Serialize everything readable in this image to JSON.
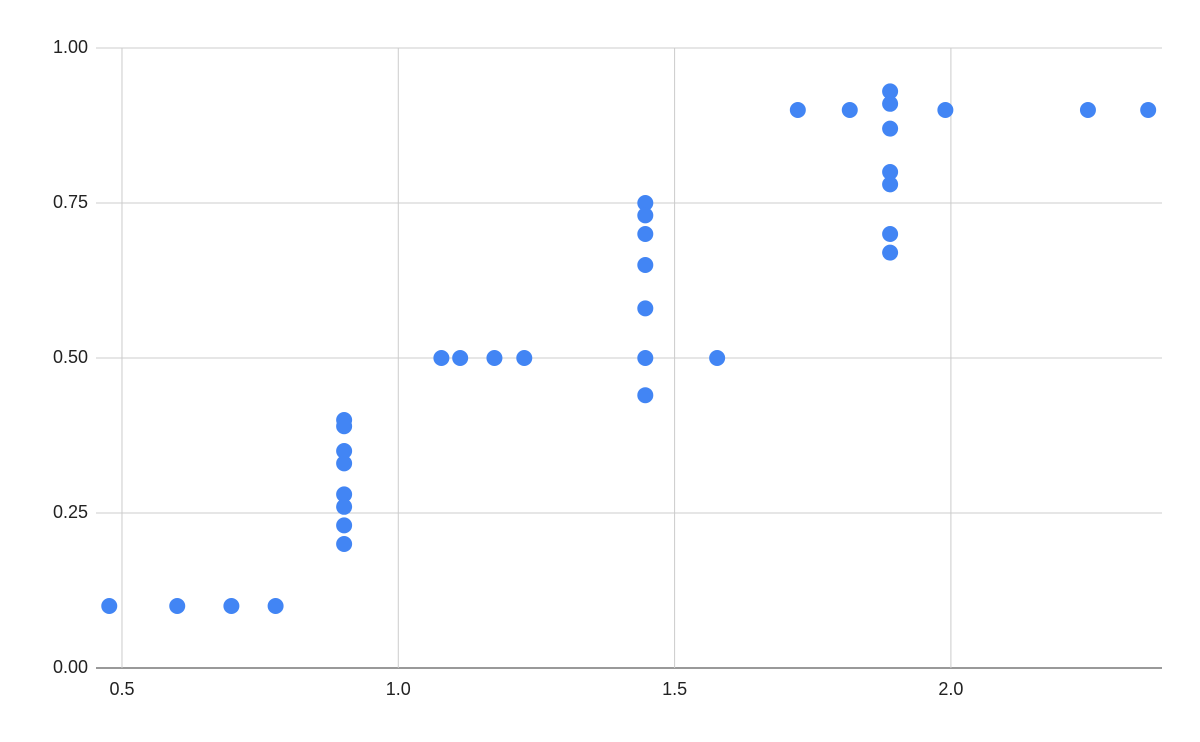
{
  "chart_data": {
    "type": "scatter",
    "x": [
      0.477,
      0.6,
      0.698,
      0.778,
      0.902,
      0.902,
      0.902,
      0.902,
      0.902,
      0.902,
      0.902,
      0.902,
      1.078,
      1.112,
      1.174,
      1.228,
      1.447,
      1.447,
      1.447,
      1.447,
      1.447,
      1.447,
      1.447,
      1.577,
      1.723,
      1.817,
      1.89,
      1.89,
      1.89,
      1.89,
      1.89,
      1.89,
      1.89,
      1.99,
      2.248,
      2.357
    ],
    "values": [
      0.1,
      0.1,
      0.1,
      0.1,
      0.4,
      0.39,
      0.35,
      0.33,
      0.28,
      0.26,
      0.23,
      0.2,
      0.5,
      0.5,
      0.5,
      0.5,
      0.75,
      0.73,
      0.7,
      0.65,
      0.58,
      0.5,
      0.44,
      0.5,
      0.9,
      0.9,
      0.93,
      0.91,
      0.87,
      0.8,
      0.78,
      0.7,
      0.67,
      0.9,
      0.9,
      0.9
    ],
    "color": "#4285f4",
    "xlim": [
      0.453,
      2.382
    ],
    "xticks": [
      0.5,
      {
        "value": 1,
        "label": "1.0"
      },
      1.5,
      {
        "value": 2,
        "label": "2.0"
      }
    ],
    "ylim": [
      0,
      1
    ],
    "yticks": [
      {
        "value": 0,
        "label": "0.00"
      },
      {
        "value": 0.25,
        "label": "0.25"
      },
      {
        "value": 0.5,
        "label": "0.50"
      },
      {
        "value": 0.75,
        "label": "0.75"
      },
      {
        "value": 1,
        "label": "1.00"
      }
    ],
    "grid": true
  }
}
